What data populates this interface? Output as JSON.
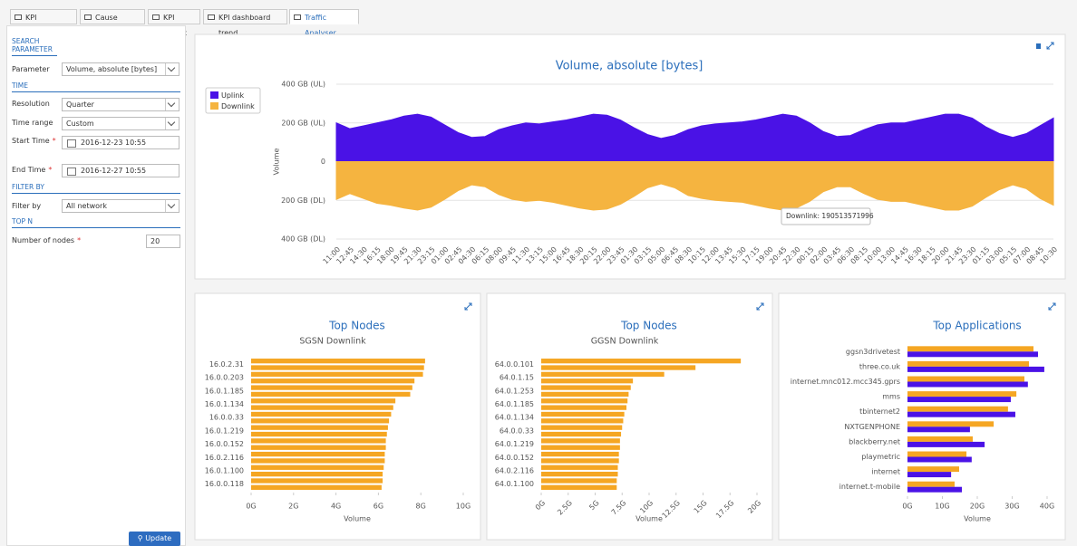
{
  "tabs": [
    "KPI dashboard",
    "Cause analysis",
    "KPI matrix",
    "KPI dashboard trend",
    "Traffic Analyser"
  ],
  "form": {
    "search_parameter": "SEARCH PARAMETER",
    "parameter_label": "Parameter",
    "parameter_value": "Volume, absolute [bytes]",
    "time": "TIME",
    "resolution_label": "Resolution",
    "resolution_value": "Quarter",
    "time_range_label": "Time range",
    "time_range_value": "Custom",
    "start_label": "Start Time",
    "start_value": "2016-12-23 10:55",
    "end_label": "End Time",
    "end_value": "2016-12-27 10:55",
    "required_mark": "*",
    "filter_by": "FILTER BY",
    "filter_label": "Filter by",
    "filter_value": "All network",
    "top_n": "TOP N",
    "nodes_label": "Number of nodes",
    "nodes_value": "20",
    "update": "Update"
  },
  "chart_data": [
    {
      "type": "area",
      "title": "Volume, absolute [bytes]",
      "y_label": "Volume",
      "legend": "top-left",
      "tooltip": "Downlink: 190513571996",
      "categories": [
        "11:00",
        "12:45",
        "14:30",
        "16:15",
        "18:00",
        "19:45",
        "21:30",
        "23:15",
        "01:00",
        "02:45",
        "04:30",
        "06:15",
        "08:00",
        "09:45",
        "11:30",
        "13:15",
        "15:00",
        "16:45",
        "18:30",
        "20:15",
        "22:00",
        "23:45",
        "01:30",
        "03:15",
        "05:00",
        "06:45",
        "08:30",
        "10:15",
        "12:00",
        "13:45",
        "15:30",
        "17:15",
        "19:00",
        "20:45",
        "22:30",
        "00:15",
        "02:00",
        "03:45",
        "06:30",
        "08:15",
        "10:00",
        "13:00",
        "14:45",
        "16:30",
        "18:15",
        "20:00",
        "21:45",
        "23:30",
        "01:15",
        "03:00",
        "05:15",
        "07:00",
        "08:45",
        "10:30"
      ],
      "series": [
        {
          "name": "Uplink",
          "color": "#4a12e6",
          "values": [
            200,
            170,
            185,
            200,
            215,
            235,
            245,
            230,
            190,
            150,
            125,
            130,
            165,
            185,
            200,
            195,
            205,
            215,
            230,
            245,
            240,
            215,
            175,
            140,
            120,
            135,
            165,
            185,
            195,
            200,
            205,
            215,
            230,
            245,
            235,
            200,
            155,
            130,
            135,
            165,
            190,
            200,
            200,
            215,
            230,
            245,
            245,
            225,
            180,
            145,
            125,
            145,
            185,
            225
          ]
        },
        {
          "name": "Downlink",
          "color": "#f5b440",
          "values": [
            -195,
            -165,
            -190,
            -215,
            -225,
            -240,
            -250,
            -235,
            -195,
            -150,
            -120,
            -130,
            -170,
            -195,
            -205,
            -200,
            -210,
            -225,
            -240,
            -250,
            -245,
            -220,
            -180,
            -135,
            -115,
            -135,
            -175,
            -190,
            -200,
            -205,
            -210,
            -225,
            -240,
            -250,
            -240,
            -205,
            -155,
            -130,
            -130,
            -165,
            -195,
            -205,
            -205,
            -220,
            -235,
            -250,
            -250,
            -230,
            -185,
            -145,
            -120,
            -140,
            -190,
            -225
          ]
        }
      ],
      "ylim": [
        -400,
        400
      ],
      "yticks": [
        {
          "value": 400,
          "label": "400 GB (UL)"
        },
        {
          "value": 200,
          "label": "200 GB (UL)"
        },
        0,
        {
          "value": -200,
          "label": "200 GB (DL)"
        },
        {
          "value": -400,
          "label": "400 GB (DL)"
        }
      ],
      "grid": true
    },
    {
      "type": "hbar",
      "title": "Top Nodes",
      "subtitle": "SGSN Downlink",
      "x_label": "Volume",
      "categories": [
        "16.0.2.31",
        null,
        "16.0.0.203",
        null,
        "16.0.1.185",
        null,
        "16.0.1.134",
        null,
        "16.0.0.33",
        null,
        "16.0.1.219",
        null,
        "16.0.0.152",
        null,
        "16.0.2.116",
        null,
        "16.0.1.100",
        null,
        "16.0.0.118",
        null
      ],
      "series": [
        {
          "color": "#f5a623",
          "values": [
            8.2,
            8.15,
            8.1,
            7.7,
            7.6,
            7.5,
            6.8,
            6.7,
            6.6,
            6.5,
            6.45,
            6.4,
            6.35,
            6.35,
            6.3,
            6.3,
            6.25,
            6.2,
            6.2,
            6.15
          ]
        }
      ],
      "xlim": [
        0,
        10
      ],
      "xticks": [
        {
          "value": 0,
          "label": "0G"
        },
        {
          "value": 2,
          "label": "2G"
        },
        {
          "value": 4,
          "label": "4G"
        },
        {
          "value": 6,
          "label": "6G"
        },
        {
          "value": 8,
          "label": "8G"
        },
        {
          "value": 10,
          "label": "10G"
        }
      ]
    },
    {
      "type": "hbar",
      "title": "Top Nodes",
      "subtitle": "GGSN Downlink",
      "x_label": "Volume",
      "categories": [
        "64.0.0.101",
        null,
        "64.0.1.15",
        null,
        "64.0.1.253",
        null,
        "64.0.1.185",
        null,
        "64.0.1.134",
        null,
        "64.0.0.33",
        null,
        "64.0.1.219",
        null,
        "64.0.0.152",
        null,
        "64.0.2.116",
        null,
        "64.0.1.100",
        null
      ],
      "series": [
        {
          "color": "#f5a623",
          "values": [
            18.5,
            14.3,
            11.4,
            8.5,
            8.3,
            8.1,
            8.0,
            7.9,
            7.7,
            7.6,
            7.5,
            7.4,
            7.3,
            7.3,
            7.2,
            7.2,
            7.1,
            7.1,
            7.0,
            7.0
          ]
        }
      ],
      "xlim": [
        0,
        20
      ],
      "xticks": [
        {
          "value": 0,
          "label": "0G"
        },
        {
          "value": 2.5,
          "label": "2.5G"
        },
        {
          "value": 5,
          "label": "5G"
        },
        {
          "value": 7.5,
          "label": "7.5G"
        },
        {
          "value": 10,
          "label": "10G"
        },
        {
          "value": 12.5,
          "label": "12.5G"
        },
        {
          "value": 15,
          "label": "15G"
        },
        {
          "value": 17.5,
          "label": "17.5G"
        },
        {
          "value": 20,
          "label": "20G"
        }
      ]
    },
    {
      "type": "hbar",
      "title": "Top Applications",
      "x_label": "Volume",
      "categories": [
        "ggsn3drivetest",
        "three.co.uk",
        "internet.mnc012.mcc345.gprs",
        "mms",
        "tbinternet2",
        "NXTGENPHONE",
        "blackberry.net",
        "playmetric",
        "internet",
        "internet.t-mobile"
      ],
      "series": [
        {
          "color": "#f5a623",
          "values": [
            36.1,
            34.8,
            33.5,
            31.2,
            28.8,
            24.7,
            18.7,
            16.9,
            14.8,
            13.5
          ]
        },
        {
          "color": "#4a12e6",
          "values": [
            37.4,
            39.2,
            34.5,
            29.6,
            30.9,
            17.9,
            22.1,
            18.4,
            12.5,
            15.6
          ]
        }
      ],
      "xlim": [
        0,
        40
      ],
      "xticks": [
        {
          "value": 0,
          "label": "0G"
        },
        {
          "value": 10,
          "label": "10G"
        },
        {
          "value": 20,
          "label": "20G"
        },
        {
          "value": 30,
          "label": "30G"
        },
        {
          "value": 40,
          "label": "40G"
        }
      ]
    }
  ]
}
